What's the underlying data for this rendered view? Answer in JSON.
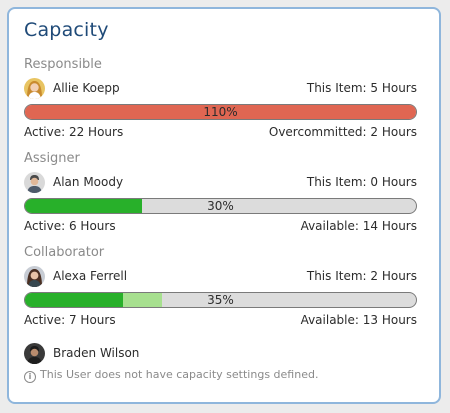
{
  "card": {
    "title": "Capacity"
  },
  "responsible": {
    "label": "Responsible",
    "user_name": "Allie Koepp",
    "this_item": "This Item: 5 Hours",
    "percent_label": "110%",
    "fill_fraction": 1.0,
    "fill_color": "#e06652",
    "active": "Active: 22 Hours",
    "status": "Overcommitted: 2 Hours"
  },
  "assigner": {
    "label": "Assigner",
    "user_name": "Alan Moody",
    "this_item": "This Item: 0 Hours",
    "percent_label": "30%",
    "fill_fraction": 0.3,
    "fill_color": "#28b02a",
    "active": "Active: 6 Hours",
    "status": "Available: 14 Hours"
  },
  "collaborator": {
    "label": "Collaborator",
    "user_name": "Alexa Ferrell",
    "this_item": "This Item: 2 Hours",
    "percent_label": "35%",
    "fill_fraction": 0.25,
    "extra_fraction": 0.1,
    "fill_color": "#28b02a",
    "extra_color": "#a7e08f",
    "active": "Active: 7 Hours",
    "status": "Available: 13 Hours"
  },
  "unconfigured": {
    "user_name": "Braden Wilson",
    "note": "This User does not have capacity settings defined.",
    "icon": "info-icon"
  },
  "colors": {
    "title": "#1f4a78",
    "border": "#8fb6dc",
    "bar_track": "#dcdcdc"
  }
}
